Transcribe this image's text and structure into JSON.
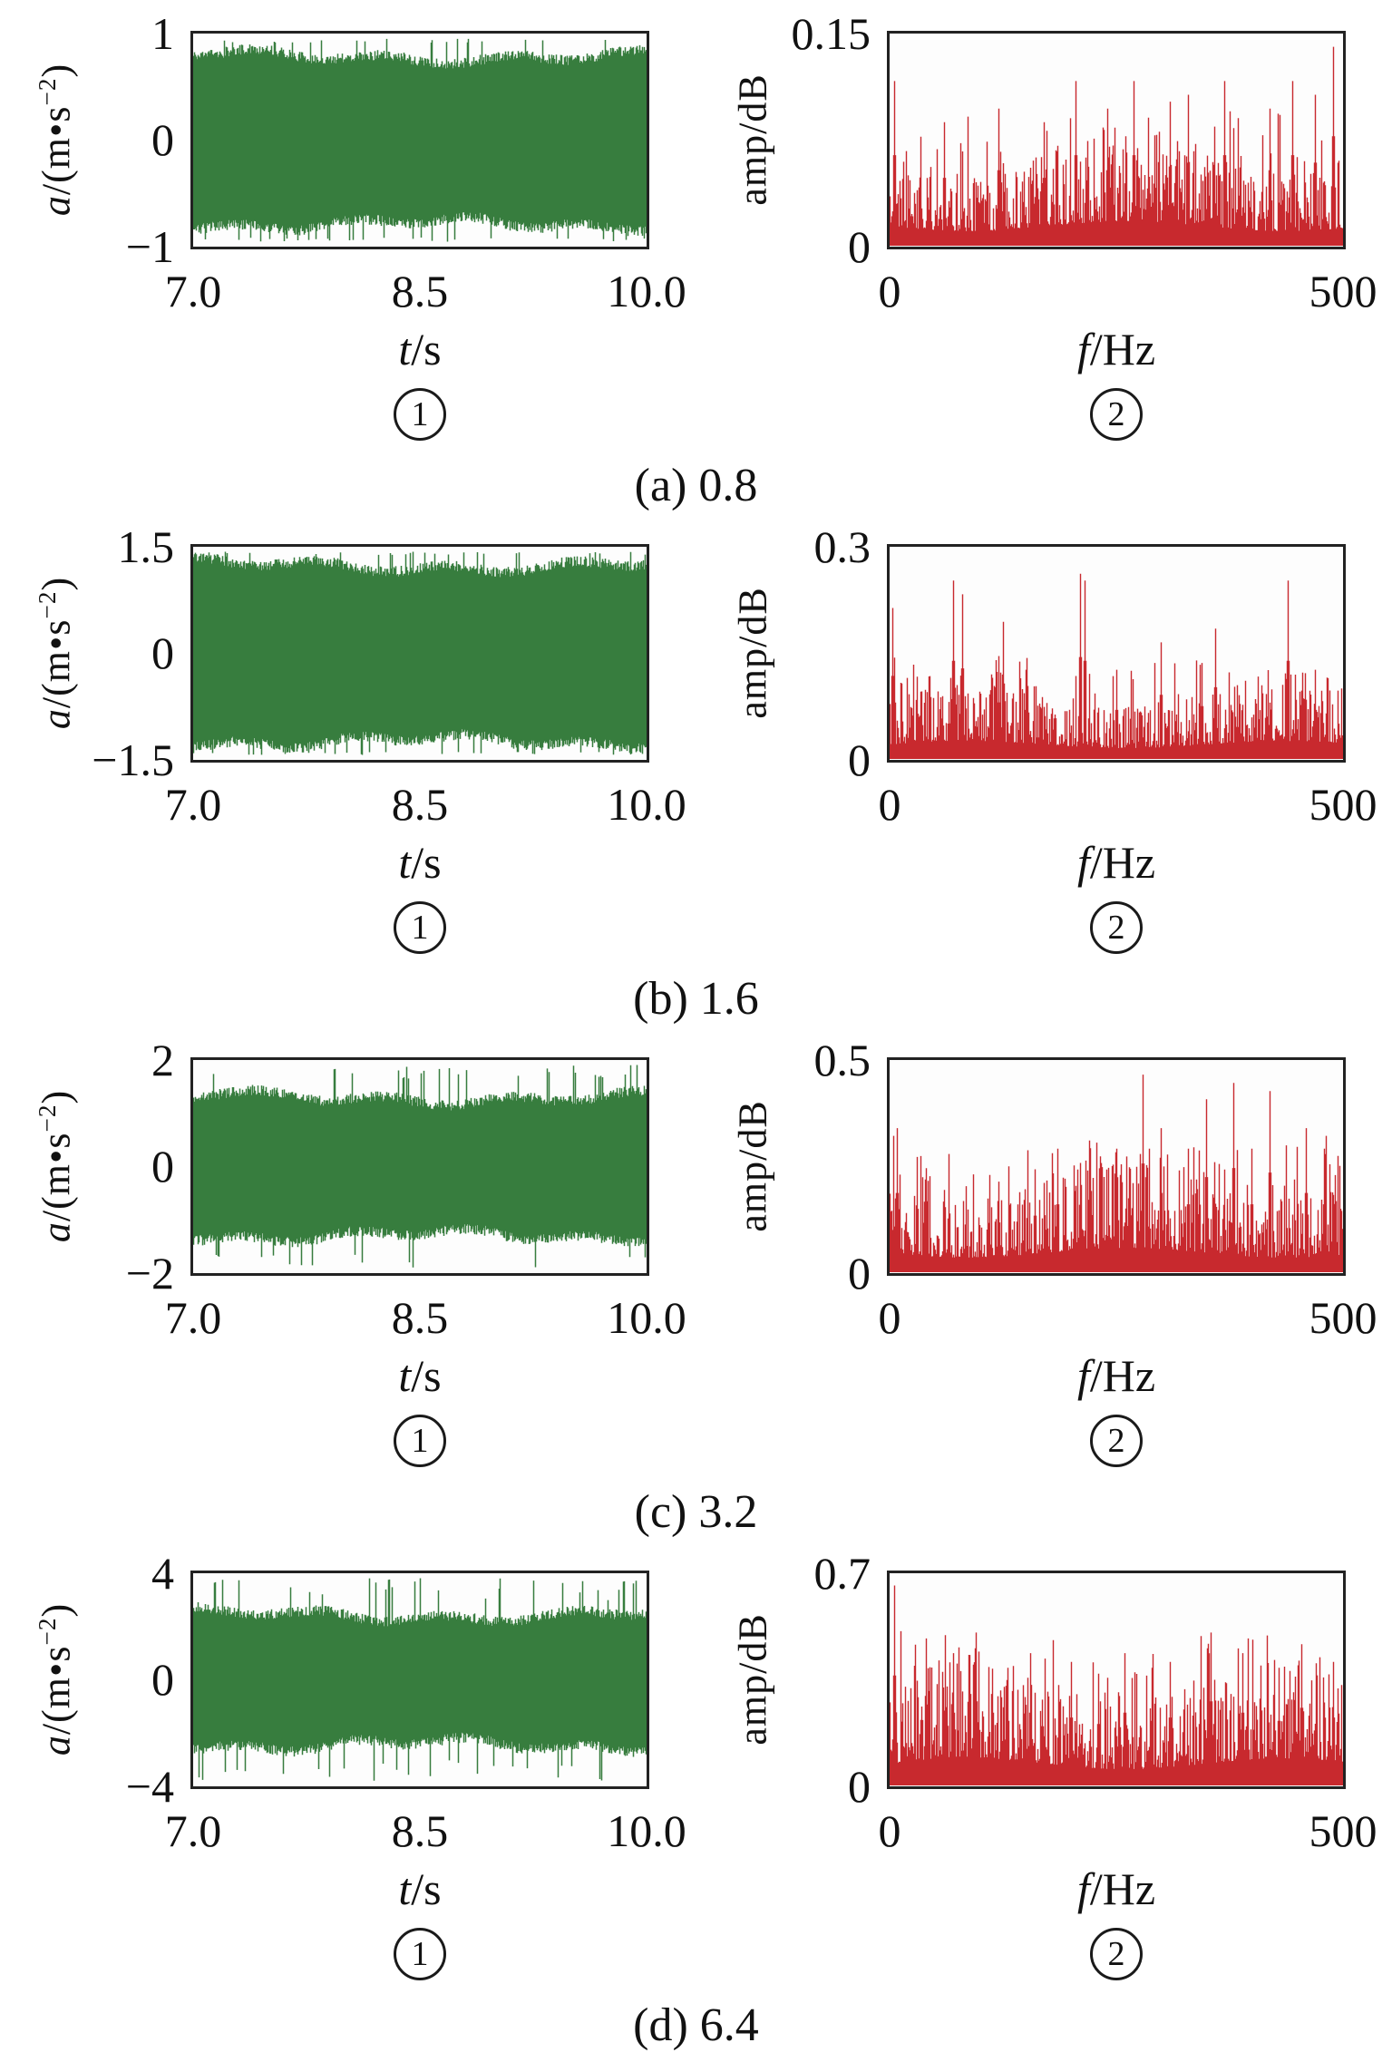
{
  "figure": {
    "background": "#ffffff",
    "colors": {
      "waveform": "#377d3e",
      "spectrum": "#c8292e",
      "axis": "#222222",
      "text": "#111111"
    },
    "panel_numbers": {
      "time": "1",
      "freq": "2"
    },
    "time_axis": {
      "xticks": [
        "7.0",
        "8.5",
        "10.0"
      ],
      "xlabel_var": "t",
      "xlabel_rest": "/s",
      "ylabel_var": "a",
      "ylabel_mid": "/(m•s",
      "ylabel_sup": "−2",
      "ylabel_close": ")"
    },
    "freq_axis": {
      "xticks": [
        "0",
        "500"
      ],
      "xlabel_var": "f",
      "xlabel_rest": "/Hz",
      "ylabel": "amp/dB"
    },
    "rows": [
      {
        "caption": "(a) 0.8",
        "time_yticks": [
          "1",
          "0",
          "−1"
        ],
        "freq_yticks": [
          "0.15",
          "0"
        ]
      },
      {
        "caption": "(b) 1.6",
        "time_yticks": [
          "1.5",
          "0",
          "−1.5"
        ],
        "freq_yticks": [
          "0.3",
          "0"
        ]
      },
      {
        "caption": "(c) 3.2",
        "time_yticks": [
          "2",
          "0",
          "−2"
        ],
        "freq_yticks": [
          "0.5",
          "0"
        ]
      },
      {
        "caption": "(d) 6.4",
        "time_yticks": [
          "4",
          "0",
          "−4"
        ],
        "freq_yticks": [
          "0.7",
          "0"
        ]
      }
    ]
  },
  "chart_data": [
    {
      "row": "a",
      "panel": "time",
      "type": "area",
      "title": "vibration acceleration waveform at 0.8",
      "xlabel": "t/s",
      "ylabel": "a/(m·s−2)",
      "xlim": [
        7.0,
        10.0
      ],
      "xticks": [
        7.0,
        8.5,
        10.0
      ],
      "ylim": [
        -1,
        1
      ],
      "yticks": [
        -1,
        0,
        1
      ],
      "envelope_frac": 0.8,
      "spike_frac": 0.93,
      "seed": 11,
      "color": "#377d3e",
      "grid": false,
      "legend": "none"
    },
    {
      "row": "a",
      "panel": "freq",
      "type": "line",
      "title": "amplitude spectrum at 0.8",
      "xlabel": "f/Hz",
      "ylabel": "amp/dB",
      "xlim": [
        0,
        500
      ],
      "xticks": [
        0,
        500
      ],
      "ylim": [
        0,
        0.15
      ],
      "yticks": [
        0,
        0.15
      ],
      "baseline_frac": 0.27,
      "seed": 22,
      "peaks": [
        [
          5,
          0.12
        ],
        [
          60,
          0.09
        ],
        [
          120,
          0.1
        ],
        [
          170,
          0.09
        ],
        [
          205,
          0.12
        ],
        [
          240,
          0.1
        ],
        [
          270,
          0.12
        ],
        [
          310,
          0.105
        ],
        [
          330,
          0.11
        ],
        [
          370,
          0.12
        ],
        [
          420,
          0.1
        ],
        [
          445,
          0.12
        ],
        [
          470,
          0.11
        ],
        [
          490,
          0.145
        ]
      ],
      "color": "#c8292e",
      "grid": false,
      "legend": "none"
    },
    {
      "row": "b",
      "panel": "time",
      "type": "area",
      "title": "vibration acceleration waveform at 1.6",
      "xlabel": "t/s",
      "ylabel": "a/(m·s−2)",
      "xlim": [
        7.0,
        10.0
      ],
      "xticks": [
        7.0,
        8.5,
        10.0
      ],
      "ylim": [
        -1.5,
        1.5
      ],
      "yticks": [
        -1.5,
        0,
        1.5
      ],
      "envelope_frac": 0.84,
      "spike_frac": 0.94,
      "seed": 33,
      "color": "#377d3e",
      "grid": false,
      "legend": "none"
    },
    {
      "row": "b",
      "panel": "freq",
      "type": "line",
      "title": "amplitude spectrum at 1.6",
      "xlabel": "f/Hz",
      "ylabel": "amp/dB",
      "xlim": [
        0,
        500
      ],
      "xticks": [
        0,
        500
      ],
      "ylim": [
        0,
        0.3
      ],
      "yticks": [
        0,
        0.3
      ],
      "baseline_frac": 0.2,
      "seed": 44,
      "peaks": [
        [
          3,
          0.22
        ],
        [
          30,
          0.12
        ],
        [
          70,
          0.26
        ],
        [
          80,
          0.24
        ],
        [
          120,
          0.15
        ],
        [
          125,
          0.2
        ],
        [
          150,
          0.13
        ],
        [
          210,
          0.27
        ],
        [
          215,
          0.26
        ],
        [
          250,
          0.13
        ],
        [
          300,
          0.17
        ],
        [
          345,
          0.14
        ],
        [
          360,
          0.19
        ],
        [
          440,
          0.26
        ],
        [
          470,
          0.13
        ]
      ],
      "color": "#c8292e",
      "grid": false,
      "legend": "none"
    },
    {
      "row": "c",
      "panel": "time",
      "type": "area",
      "title": "vibration acceleration waveform at 3.2",
      "xlabel": "t/s",
      "ylabel": "a/(m·s−2)",
      "xlim": [
        7.0,
        10.0
      ],
      "xticks": [
        7.0,
        8.5,
        10.0
      ],
      "ylim": [
        -2,
        2
      ],
      "yticks": [
        -2,
        0,
        2
      ],
      "envelope_frac": 0.66,
      "spike_frac": 0.84,
      "seed": 55,
      "color": "#377d3e",
      "grid": false,
      "legend": "none"
    },
    {
      "row": "c",
      "panel": "freq",
      "type": "line",
      "title": "amplitude spectrum at 3.2",
      "xlabel": "f/Hz",
      "ylabel": "amp/dB",
      "xlim": [
        0,
        500
      ],
      "xticks": [
        0,
        500
      ],
      "ylim": [
        0,
        0.5
      ],
      "yticks": [
        0,
        0.5
      ],
      "baseline_frac": 0.27,
      "seed": 66,
      "peaks": [
        [
          8,
          0.35
        ],
        [
          30,
          0.28
        ],
        [
          60,
          0.2
        ],
        [
          120,
          0.22
        ],
        [
          160,
          0.25
        ],
        [
          185,
          0.3
        ],
        [
          220,
          0.32
        ],
        [
          250,
          0.3
        ],
        [
          280,
          0.48
        ],
        [
          300,
          0.35
        ],
        [
          330,
          0.3
        ],
        [
          350,
          0.42
        ],
        [
          380,
          0.46
        ],
        [
          400,
          0.3
        ],
        [
          420,
          0.44
        ],
        [
          460,
          0.35
        ],
        [
          480,
          0.3
        ]
      ],
      "color": "#c8292e",
      "grid": false,
      "legend": "none"
    },
    {
      "row": "d",
      "panel": "time",
      "type": "area",
      "title": "vibration acceleration waveform at 6.4",
      "xlabel": "t/s",
      "ylabel": "a/(m·s−2)",
      "xlim": [
        7.0,
        10.0
      ],
      "xticks": [
        7.0,
        8.5,
        10.0
      ],
      "ylim": [
        -4,
        4
      ],
      "yticks": [
        -4,
        0,
        4
      ],
      "envelope_frac": 0.62,
      "spike_frac": 0.76,
      "seed": 77,
      "color": "#377d3e",
      "grid": false,
      "legend": "none"
    },
    {
      "row": "d",
      "panel": "freq",
      "type": "line",
      "title": "amplitude spectrum at 6.4",
      "xlabel": "f/Hz",
      "ylabel": "amp/dB",
      "xlim": [
        0,
        500
      ],
      "xticks": [
        0,
        500
      ],
      "ylim": [
        0,
        0.7
      ],
      "yticks": [
        0,
        0.7
      ],
      "baseline_frac": 0.3,
      "seed": 88,
      "peaks": [
        [
          5,
          0.68
        ],
        [
          40,
          0.5
        ],
        [
          70,
          0.45
        ],
        [
          95,
          0.52
        ],
        [
          130,
          0.4
        ],
        [
          155,
          0.45
        ],
        [
          200,
          0.42
        ],
        [
          230,
          0.38
        ],
        [
          260,
          0.45
        ],
        [
          290,
          0.4
        ],
        [
          310,
          0.42
        ],
        [
          355,
          0.52
        ],
        [
          390,
          0.45
        ],
        [
          430,
          0.4
        ],
        [
          455,
          0.48
        ],
        [
          490,
          0.42
        ]
      ],
      "color": "#c8292e",
      "grid": false,
      "legend": "none"
    }
  ]
}
